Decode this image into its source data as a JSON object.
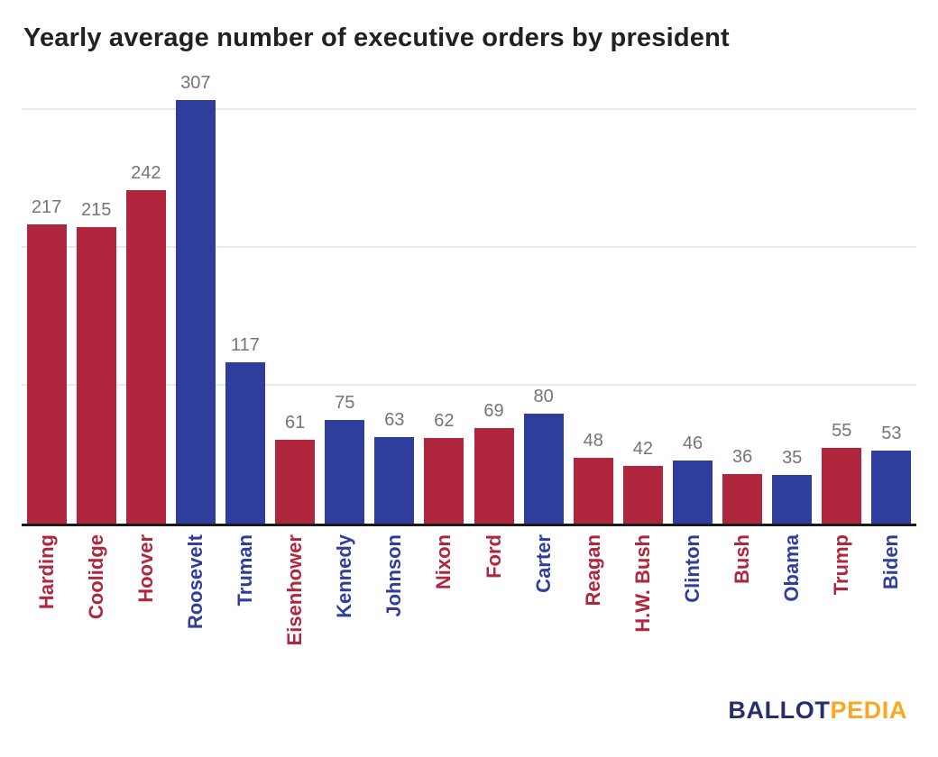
{
  "title": "Yearly average number of executive orders by president",
  "logo": {
    "ballot": "BALLOT",
    "pedia": "PEDIA"
  },
  "colors": {
    "red": "#b0263d",
    "blue": "#2f3e9c",
    "value_label": "#757575",
    "gridline": "#e9e9e9",
    "axis": "#1a1a1a",
    "logo_blue": "#252f6b",
    "logo_orange": "#f9a826"
  },
  "chart_data": {
    "type": "bar",
    "title": "Yearly average number of executive orders by president",
    "categories": [
      "Harding",
      "Coolidge",
      "Hoover",
      "Roosevelt",
      "Truman",
      "Eisenhower",
      "Kennedy",
      "Johnson",
      "Nixon",
      "Ford",
      "Carter",
      "Reagan",
      "H.W. Bush",
      "Clinton",
      "Bush",
      "Obama",
      "Trump",
      "Biden"
    ],
    "values": [
      217,
      215,
      242,
      307,
      117,
      61,
      75,
      63,
      62,
      69,
      80,
      48,
      42,
      46,
      36,
      35,
      55,
      53
    ],
    "bar_colors": [
      "red",
      "red",
      "red",
      "blue",
      "blue",
      "red",
      "blue",
      "blue",
      "red",
      "red",
      "blue",
      "red",
      "red",
      "blue",
      "red",
      "blue",
      "red",
      "blue"
    ],
    "xlabel": "",
    "ylabel": "",
    "ylim": [
      0,
      307
    ],
    "gridlines": [
      100,
      200,
      300
    ],
    "grid": true,
    "value_labels": true,
    "legend": "none"
  }
}
